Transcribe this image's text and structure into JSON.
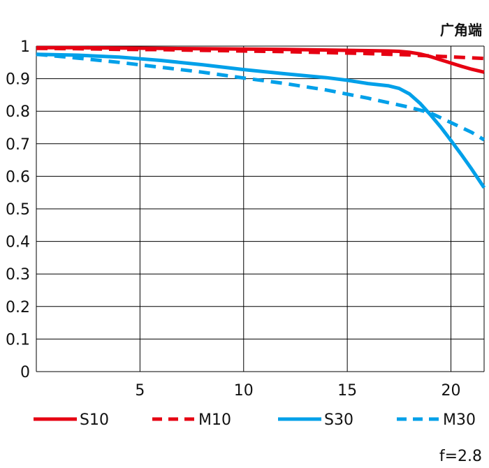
{
  "chart_data": {
    "type": "line",
    "corner_label": "广角端",
    "aperture_label": "f=2.8",
    "xlim": [
      0,
      21.6
    ],
    "ylim": [
      0,
      1
    ],
    "x_ticks": [
      5,
      10,
      15,
      20
    ],
    "y_ticks": [
      0,
      0.1,
      0.2,
      0.3,
      0.4,
      0.5,
      0.6,
      0.7,
      0.8,
      0.9,
      1
    ],
    "y_tick_labels": [
      "0",
      "0.1",
      "0.2",
      "0.3",
      "0.4",
      "0.5",
      "0.6",
      "0.7",
      "0.8",
      "0.9",
      "1"
    ],
    "grid": true,
    "legend_position": "bottom",
    "series": [
      {
        "name": "S10",
        "color": "#e60012",
        "dash": "solid",
        "x": [
          0,
          2,
          4,
          6,
          8,
          10,
          12,
          14,
          16,
          17,
          17.5,
          18,
          18.5,
          19,
          19.5,
          20,
          20.5,
          21,
          21.6
        ],
        "y": [
          0.995,
          0.995,
          0.994,
          0.993,
          0.992,
          0.991,
          0.99,
          0.988,
          0.986,
          0.985,
          0.984,
          0.981,
          0.976,
          0.968,
          0.958,
          0.948,
          0.938,
          0.929,
          0.92
        ]
      },
      {
        "name": "M10",
        "color": "#e60012",
        "dash": "dashed",
        "x": [
          0,
          2,
          4,
          6,
          8,
          10,
          12,
          14,
          16,
          17,
          18,
          19,
          20,
          21,
          21.6
        ],
        "y": [
          0.993,
          0.992,
          0.99,
          0.989,
          0.987,
          0.985,
          0.983,
          0.98,
          0.977,
          0.975,
          0.973,
          0.97,
          0.967,
          0.964,
          0.962
        ]
      },
      {
        "name": "S30",
        "color": "#00a0e9",
        "dash": "solid",
        "x": [
          0,
          2,
          4,
          6,
          8,
          10,
          12,
          14,
          15,
          16,
          17,
          17.5,
          18,
          18.5,
          19,
          19.5,
          20,
          20.5,
          21,
          21.6
        ],
        "y": [
          0.975,
          0.972,
          0.966,
          0.956,
          0.943,
          0.928,
          0.915,
          0.903,
          0.895,
          0.885,
          0.878,
          0.87,
          0.853,
          0.825,
          0.79,
          0.752,
          0.71,
          0.667,
          0.622,
          0.565
        ]
      },
      {
        "name": "M30",
        "color": "#00a0e9",
        "dash": "dashed",
        "x": [
          0,
          2,
          4,
          6,
          8,
          10,
          12,
          14,
          16,
          18,
          19,
          20,
          21,
          21.6
        ],
        "y": [
          0.975,
          0.963,
          0.95,
          0.935,
          0.92,
          0.902,
          0.885,
          0.865,
          0.84,
          0.812,
          0.795,
          0.765,
          0.735,
          0.712
        ]
      }
    ]
  }
}
